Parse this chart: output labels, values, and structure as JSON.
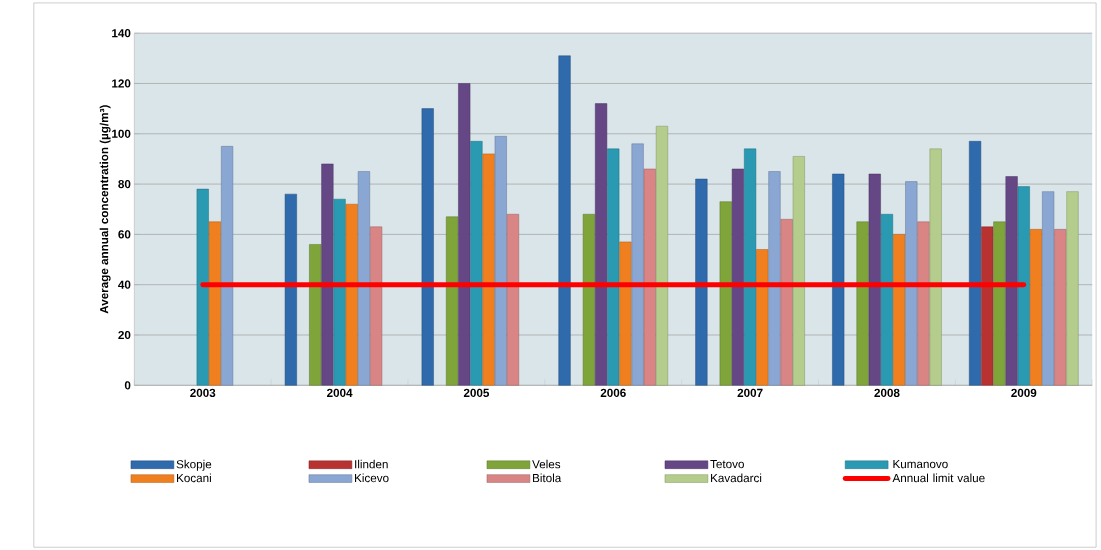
{
  "chart_data": {
    "type": "bar",
    "ylabel": "Average annual concentration (µg/m³)",
    "categories": [
      "2003",
      "2004",
      "2005",
      "2006",
      "2007",
      "2008",
      "2009"
    ],
    "ylim": [
      0,
      140
    ],
    "yticks": [
      0,
      20,
      40,
      60,
      80,
      100,
      120,
      140
    ],
    "grid": "y",
    "legend": "bottom",
    "series": [
      {
        "name": "Skopje",
        "color": "#2f6aad",
        "values": [
          null,
          76,
          110,
          131,
          82,
          84,
          97
        ]
      },
      {
        "name": "Ilinden",
        "color": "#b83232",
        "values": [
          null,
          null,
          null,
          null,
          null,
          null,
          63
        ]
      },
      {
        "name": "Veles",
        "color": "#7fa53a",
        "values": [
          null,
          56,
          67,
          68,
          73,
          65,
          65
        ]
      },
      {
        "name": "Tetovo",
        "color": "#664786",
        "values": [
          null,
          88,
          120,
          112,
          86,
          84,
          83
        ]
      },
      {
        "name": "Kumanovo",
        "color": "#2a9ab3",
        "values": [
          78,
          74,
          97,
          94,
          94,
          68,
          79
        ]
      },
      {
        "name": "Kocani",
        "color": "#f0801f",
        "values": [
          65,
          72,
          92,
          57,
          54,
          60,
          62
        ]
      },
      {
        "name": "Kicevo",
        "color": "#8aa6d2",
        "values": [
          95,
          85,
          99,
          96,
          85,
          81,
          77
        ]
      },
      {
        "name": "Bitola",
        "color": "#d98585",
        "values": [
          null,
          63,
          68,
          86,
          66,
          65,
          62
        ]
      },
      {
        "name": "Kavadarci",
        "color": "#b5cd8c",
        "values": [
          null,
          null,
          null,
          103,
          91,
          94,
          77
        ]
      },
      {
        "name": "Annual limit value",
        "type": "line",
        "color": "#ff0000",
        "values": [
          40,
          40,
          40,
          40,
          40,
          40,
          40
        ]
      }
    ]
  }
}
